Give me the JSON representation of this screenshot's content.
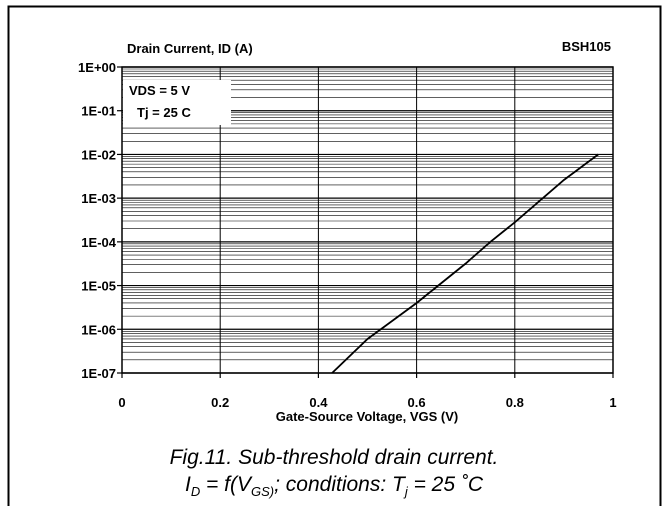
{
  "chart_data": {
    "type": "line",
    "title": "BSH105",
    "ylabel": "Drain Current, ID (A)",
    "xlabel": "Gate-Source Voltage, VGS (V)",
    "xlim": [
      0,
      1
    ],
    "ylim": [
      1e-07,
      1
    ],
    "yscale": "log",
    "x_ticks": [
      "0",
      "0.2",
      "0.4",
      "0.6",
      "0.8",
      "1"
    ],
    "y_ticks": [
      "1E+00",
      "1E-01",
      "1E-02",
      "1E-03",
      "1E-04",
      "1E-05",
      "1E-06",
      "1E-07"
    ],
    "grid": true,
    "annotations": [
      "VDS = 5 V",
      "Tj = 25 C"
    ],
    "series": [
      {
        "color": "#000000",
        "x": [
          0.428,
          0.5,
          0.6,
          0.7,
          0.75,
          0.8,
          0.9,
          0.97
        ],
        "y": [
          1e-07,
          6e-07,
          4e-06,
          3.2e-05,
          0.0001,
          0.00028,
          0.0026,
          0.01
        ]
      }
    ]
  },
  "caption": {
    "line1": "Fig.11.   Sub-threshold drain current.",
    "I": "I",
    "D": "D",
    "eq1": " = f(V",
    "GS": "GS)",
    "mid": "; conditions: T",
    "j": "j",
    "end": " = 25 ˚C"
  }
}
